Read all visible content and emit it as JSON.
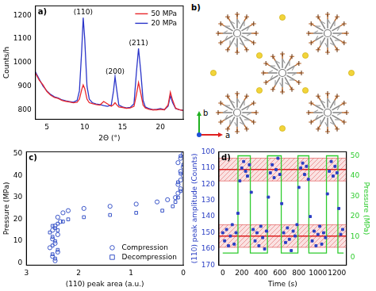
{
  "chart_data": [
    {
      "panel": "a)",
      "type": "line",
      "x_label": "2Θ (°)",
      "y_label": "Counts/h",
      "x": [
        3.5,
        4,
        4.5,
        5,
        5.5,
        6,
        6.5,
        7,
        7.5,
        8,
        8.5,
        9,
        9.3,
        9.6,
        9.8,
        10.0,
        10.3,
        10.6,
        11,
        11.5,
        12,
        12.5,
        13,
        13.5,
        13.8,
        14.0,
        14.2,
        14.5,
        15,
        15.5,
        16,
        16.5,
        16.8,
        17.1,
        17.4,
        17.7,
        18,
        18.5,
        19,
        19.5,
        20,
        20.5,
        21,
        21.3,
        21.6,
        22,
        22.5,
        23
      ],
      "series": [
        {
          "name": "50 MPa",
          "color": "#e8262b",
          "values": [
            955,
            925,
            905,
            878,
            862,
            852,
            848,
            840,
            836,
            833,
            830,
            832,
            845,
            885,
            905,
            890,
            845,
            830,
            826,
            822,
            820,
            835,
            825,
            815,
            822,
            830,
            822,
            812,
            810,
            806,
            808,
            815,
            860,
            915,
            870,
            820,
            808,
            802,
            800,
            800,
            802,
            800,
            820,
            875,
            840,
            806,
            800,
            797
          ]
        },
        {
          "name": "20 MPa",
          "color": "#2b35c9",
          "values": [
            960,
            930,
            900,
            880,
            865,
            855,
            850,
            842,
            838,
            835,
            832,
            840,
            880,
            1050,
            1190,
            1100,
            900,
            845,
            830,
            825,
            822,
            818,
            815,
            820,
            880,
            940,
            890,
            820,
            812,
            808,
            810,
            825,
            950,
            1060,
            960,
            840,
            812,
            805,
            800,
            802,
            805,
            800,
            815,
            860,
            830,
            805,
            800,
            798
          ]
        }
      ],
      "xlim": [
        3.5,
        23
      ],
      "xticks": [
        5,
        10,
        15,
        20
      ],
      "ylim": [
        760,
        1240
      ],
      "yticks": [
        800,
        900,
        1000,
        1100,
        1200
      ],
      "annotations": [
        {
          "text": "(110)",
          "x": 9.8
        },
        {
          "text": "(200)",
          "x": 14.0
        },
        {
          "text": "(211)",
          "x": 17.1
        }
      ],
      "legend": "upper right",
      "grid": false
    },
    {
      "panel": "c)",
      "type": "scatter",
      "x_label": "(110) peak area (a.u.)",
      "y_label": "Pressure (MPa)",
      "series": [
        {
          "name": "Compression",
          "color": "#3a55c8",
          "marker": "circle",
          "x": [
            2.45,
            2.5,
            2.4,
            2.55,
            2.45,
            2.5,
            2.4,
            2.5,
            2.45,
            2.35,
            2.4,
            2.3,
            2.2,
            1.9,
            1.4,
            0.9,
            0.5,
            0.3,
            0.15,
            0.1,
            0.05,
            0.1,
            0.05,
            0.0,
            0.05,
            0.0,
            0.1,
            0.05,
            0.0
          ],
          "values": [
            1,
            3,
            5,
            7,
            9,
            11,
            13,
            15,
            17,
            19,
            21,
            23,
            24,
            25,
            26,
            27,
            28,
            29,
            30,
            32,
            34,
            36,
            38,
            40,
            42,
            44,
            46,
            48,
            50
          ]
        },
        {
          "name": "Decompression",
          "color": "#3a55c8",
          "marker": "square",
          "x": [
            0.05,
            0.0,
            0.05,
            0.1,
            0.05,
            0.1,
            0.15,
            0.2,
            0.4,
            0.9,
            1.4,
            1.9,
            2.2,
            2.3,
            2.4,
            2.5,
            2.45,
            2.4,
            2.55,
            2.5,
            2.45,
            2.5,
            2.4,
            2.5,
            2.45
          ],
          "values": [
            49,
            45,
            41,
            37,
            33,
            30,
            28,
            26,
            24,
            23,
            22,
            21,
            20,
            19,
            18,
            17,
            16,
            15,
            14,
            12,
            10,
            8,
            6,
            4,
            2
          ]
        }
      ],
      "xlim": [
        3,
        0
      ],
      "xticks": [
        3,
        2,
        1,
        0
      ],
      "ylim": [
        -1,
        51
      ],
      "yticks": [
        0,
        10,
        20,
        30,
        40,
        50
      ],
      "legend": "lower right",
      "grid": false
    },
    {
      "panel": "d)",
      "type": "scatter",
      "x_label": "Time (s)",
      "y_label": "(110) peak amplitude (Counts)",
      "y2_label": "Pressure (MPa)",
      "x": [
        0,
        20,
        40,
        60,
        80,
        100,
        120,
        140,
        160,
        180,
        200,
        220,
        240,
        260,
        280,
        300,
        320,
        340,
        360,
        380,
        400,
        420,
        440,
        460,
        480,
        500,
        520,
        540,
        560,
        580,
        600,
        620,
        640,
        660,
        680,
        700,
        720,
        740,
        760,
        780,
        800,
        820,
        840,
        860,
        880,
        900,
        920,
        940,
        960,
        980,
        1000,
        1020,
        1040,
        1060,
        1080,
        1100,
        1120,
        1140,
        1160,
        1180,
        1200,
        1220,
        1240,
        1260
      ],
      "series": [
        {
          "color": "#2b3fc4",
          "marker": "square",
          "values": [
            150,
            155,
            148,
            158,
            152,
            145,
            157,
            150,
            138,
            118,
            110,
            106,
            112,
            115,
            108,
            125,
            148,
            155,
            150,
            158,
            146,
            153,
            160,
            149,
            128,
            113,
            108,
            116,
            111,
            104,
            114,
            132,
            150,
            156,
            147,
            154,
            161,
            149,
            152,
            145,
            122,
            110,
            107,
            114,
            109,
            117,
            140,
            155,
            149,
            158,
            151,
            146,
            157,
            150,
            153,
            126,
            112,
            106,
            115,
            109,
            113,
            135,
            151,
            148
          ]
        },
        {
          "type": "line",
          "axis": "y2",
          "color": "#2ecc2e",
          "x": [
            0,
            160,
            160,
            290,
            290,
            470,
            470,
            615,
            615,
            790,
            790,
            905,
            905,
            1090,
            1090,
            1210,
            1210,
            1270
          ],
          "values": [
            2,
            2,
            50,
            50,
            2,
            2,
            50,
            50,
            2,
            2,
            50,
            50,
            2,
            2,
            50,
            50,
            2,
            2
          ]
        }
      ],
      "xlim": [
        -40,
        1300
      ],
      "xticks": [
        0,
        200,
        400,
        600,
        800,
        1000,
        1200
      ],
      "ylim": [
        170,
        100
      ],
      "yticks": [
        100,
        110,
        120,
        130,
        140,
        150,
        160,
        170
      ],
      "y2lim": [
        -4,
        52
      ],
      "y2ticks": [
        0,
        10,
        20,
        30,
        40,
        50
      ],
      "reference_lines": [
        111,
        152
      ],
      "bands": [
        [
          104,
          118
        ],
        [
          145,
          159
        ]
      ],
      "grid": false
    }
  ],
  "structure_panel": {
    "panel": "b)",
    "axes": [
      "a",
      "b"
    ]
  }
}
